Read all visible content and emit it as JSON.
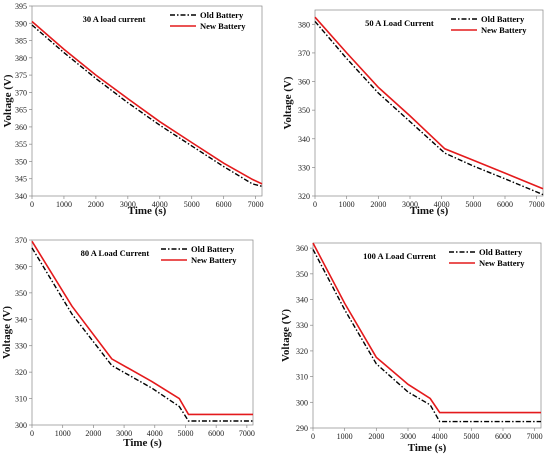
{
  "chart_data": [
    {
      "type": "line",
      "title": "30 A load current",
      "xlabel": "Time (s)",
      "ylabel": "Voltage (V)",
      "xlim": [
        0,
        7200
      ],
      "ylim": [
        340,
        395
      ],
      "xticks": [
        0,
        1000,
        2000,
        3000,
        4000,
        5000,
        6000,
        7000
      ],
      "yticks": [
        340,
        345,
        350,
        355,
        360,
        365,
        370,
        375,
        380,
        385,
        390,
        395
      ],
      "legend_position": "top-right",
      "series": [
        {
          "name": "Old Battery",
          "color": "#000000",
          "style": "dashdot",
          "x": [
            0,
            1000,
            2000,
            3000,
            4000,
            5000,
            6000,
            6900,
            7200
          ],
          "y": [
            389.5,
            381.5,
            374,
            367,
            360.5,
            354.5,
            348.5,
            343.5,
            342.8
          ]
        },
        {
          "name": "New Battery",
          "color": "#e41a1c",
          "style": "solid",
          "x": [
            0,
            1000,
            2000,
            3000,
            4000,
            5000,
            6000,
            6900,
            7200
          ],
          "y": [
            390.5,
            382.5,
            375,
            368.2,
            361.5,
            355.5,
            349.5,
            344.8,
            343.5
          ]
        }
      ]
    },
    {
      "type": "line",
      "title": "50 A Load Current",
      "xlabel": "Time (s)",
      "ylabel": "Voltage (V)",
      "xlim": [
        0,
        7200
      ],
      "ylim": [
        320,
        385
      ],
      "xticks": [
        0,
        1000,
        2000,
        3000,
        4000,
        5000,
        6000,
        7000
      ],
      "yticks": [
        320,
        330,
        340,
        350,
        360,
        370,
        380
      ],
      "legend_position": "top-right",
      "series": [
        {
          "name": "Old Battery",
          "color": "#000000",
          "style": "dashdot",
          "x": [
            0,
            1000,
            2000,
            3000,
            4100,
            5000,
            6000,
            7200
          ],
          "y": [
            381,
            368,
            356,
            346,
            335,
            330.5,
            326,
            320.5
          ]
        },
        {
          "name": "New Battery",
          "color": "#e41a1c",
          "style": "solid",
          "x": [
            0,
            1000,
            2000,
            3000,
            4100,
            5000,
            6000,
            7200
          ],
          "y": [
            382.5,
            370,
            358,
            348,
            336.5,
            332.5,
            328,
            322.5
          ]
        }
      ]
    },
    {
      "type": "line",
      "title": "80 A Load Current",
      "xlabel": "Time (s)",
      "ylabel": "Voltage (V)",
      "xlim": [
        0,
        7200
      ],
      "ylim": [
        300,
        370
      ],
      "xticks": [
        0,
        1000,
        2000,
        3000,
        4000,
        5000,
        6000,
        7000
      ],
      "yticks": [
        300,
        310,
        320,
        330,
        340,
        350,
        360,
        370
      ],
      "legend_position": "top-right",
      "series": [
        {
          "name": "Old Battery",
          "color": "#000000",
          "style": "dashdot",
          "x": [
            0,
            1300,
            2600,
            3900,
            4800,
            5100,
            6000,
            7200
          ],
          "y": [
            367,
            342,
            322.5,
            314,
            307,
            301.5,
            301.5,
            301.5
          ]
        },
        {
          "name": "New Battery",
          "color": "#e41a1c",
          "style": "solid",
          "x": [
            0,
            1300,
            2600,
            3900,
            4800,
            5100,
            6000,
            7200
          ],
          "y": [
            369.5,
            345,
            325,
            316.5,
            310,
            304,
            304,
            304
          ]
        }
      ]
    },
    {
      "type": "line",
      "title": "100 A Load Current",
      "xlabel": "Time (s)",
      "ylabel": "Voltage (V)",
      "xlim": [
        0,
        7200
      ],
      "ylim": [
        290,
        362
      ],
      "xticks": [
        0,
        1000,
        2000,
        3000,
        4000,
        5000,
        6000,
        7000
      ],
      "yticks": [
        290,
        300,
        310,
        320,
        330,
        340,
        350,
        360
      ],
      "legend_position": "top-right",
      "series": [
        {
          "name": "Old Battery",
          "color": "#000000",
          "style": "dashdot",
          "x": [
            0,
            1000,
            2000,
            3000,
            3700,
            4000,
            5000,
            6000,
            7200
          ],
          "y": [
            359.5,
            336,
            315,
            304,
            299,
            292.5,
            292.5,
            292.5,
            292.5
          ]
        },
        {
          "name": "New Battery",
          "color": "#e41a1c",
          "style": "solid",
          "x": [
            0,
            1000,
            2000,
            3000,
            3700,
            4000,
            5000,
            6000,
            7200
          ],
          "y": [
            362,
            338.5,
            317.5,
            307,
            301.5,
            296,
            296,
            296,
            296
          ]
        }
      ]
    }
  ]
}
